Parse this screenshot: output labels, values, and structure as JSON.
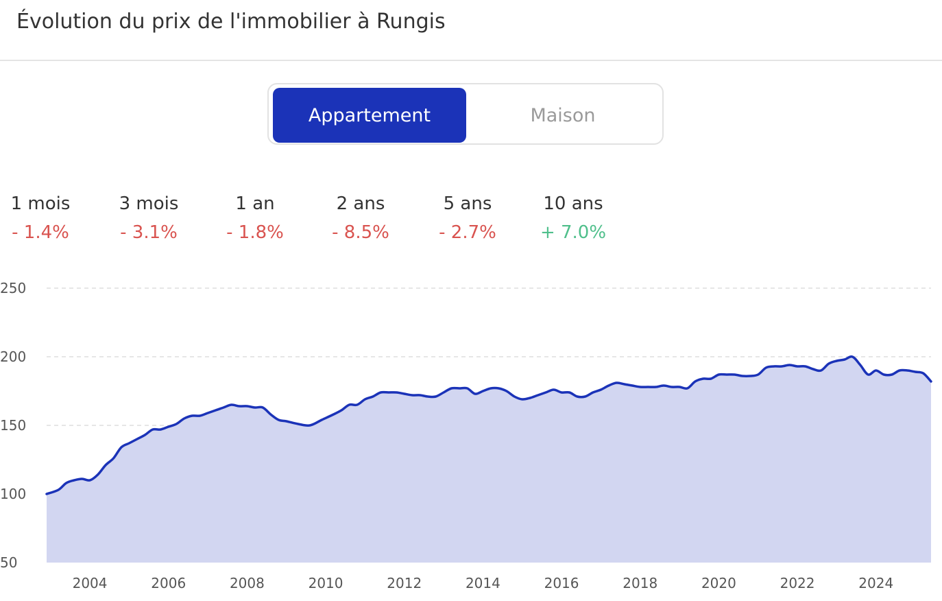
{
  "title": "Évolution du prix de l'immobilier à Rungis",
  "toggle": {
    "options": [
      "Appartement",
      "Maison"
    ],
    "selected": "Appartement",
    "active_color": "#1b33b8"
  },
  "stats": [
    {
      "label": "1 mois",
      "value": "- 1.4%",
      "trend": "down"
    },
    {
      "label": "3 mois",
      "value": "- 3.1%",
      "trend": "down"
    },
    {
      "label": "1 an",
      "value": "- 1.8%",
      "trend": "down"
    },
    {
      "label": "2 ans",
      "value": "- 8.5%",
      "trend": "down"
    },
    {
      "label": "5 ans",
      "value": "- 2.7%",
      "trend": "down"
    },
    {
      "label": "10 ans",
      "value": "+ 7.0%",
      "trend": "up"
    }
  ],
  "colors": {
    "negative": "#d9534f",
    "positive": "#4fbf8b",
    "line": "#1b33b8",
    "fill": "#d2d6f1"
  },
  "chart_data": {
    "type": "area",
    "title": "",
    "xlabel": "",
    "ylabel": "",
    "ylim": [
      50,
      250
    ],
    "xlim": [
      2002.9,
      2025.4
    ],
    "yticks": [
      250,
      200,
      150,
      100,
      50
    ],
    "xticks": [
      2004,
      2006,
      2008,
      2010,
      2012,
      2014,
      2016,
      2018,
      2020,
      2022,
      2024
    ],
    "grid": true,
    "legend": "none",
    "series": [
      {
        "x": [
          2002.9,
          2003.2,
          2003.4,
          2003.6,
          2003.8,
          2004.0,
          2004.2,
          2004.4,
          2004.6,
          2004.8,
          2005.0,
          2005.2,
          2005.4,
          2005.6,
          2005.8,
          2006.0,
          2006.2,
          2006.4,
          2006.6,
          2006.8,
          2007.0,
          2007.2,
          2007.4,
          2007.6,
          2007.8,
          2008.0,
          2008.2,
          2008.4,
          2008.6,
          2008.8,
          2009.0,
          2009.3,
          2009.6,
          2009.9,
          2010.2,
          2010.4,
          2010.6,
          2010.8,
          2011.0,
          2011.2,
          2011.4,
          2011.6,
          2011.8,
          2012.0,
          2012.2,
          2012.4,
          2012.6,
          2012.8,
          2013.0,
          2013.2,
          2013.4,
          2013.6,
          2013.8,
          2014.0,
          2014.2,
          2014.4,
          2014.6,
          2014.8,
          2015.0,
          2015.2,
          2015.4,
          2015.6,
          2015.8,
          2016.0,
          2016.2,
          2016.4,
          2016.6,
          2016.8,
          2017.0,
          2017.2,
          2017.4,
          2017.6,
          2017.8,
          2018.0,
          2018.2,
          2018.4,
          2018.6,
          2018.8,
          2019.0,
          2019.2,
          2019.4,
          2019.6,
          2019.8,
          2020.0,
          2020.2,
          2020.4,
          2020.6,
          2020.8,
          2021.0,
          2021.2,
          2021.4,
          2021.6,
          2021.8,
          2022.0,
          2022.2,
          2022.4,
          2022.6,
          2022.8,
          2023.0,
          2023.2,
          2023.4,
          2023.6,
          2023.8,
          2024.0,
          2024.2,
          2024.4,
          2024.6,
          2024.8,
          2025.0,
          2025.2,
          2025.4
        ],
        "values": [
          100,
          103,
          108,
          110,
          111,
          110,
          114,
          121,
          126,
          134,
          137,
          140,
          143,
          147,
          147,
          149,
          151,
          155,
          157,
          157,
          159,
          161,
          163,
          165,
          164,
          164,
          163,
          163,
          158,
          154,
          153,
          151,
          150,
          154,
          158,
          161,
          165,
          165,
          169,
          171,
          174,
          174,
          174,
          173,
          172,
          172,
          171,
          171,
          174,
          177,
          177,
          177,
          173,
          175,
          177,
          177,
          175,
          171,
          169,
          170,
          172,
          174,
          176,
          174,
          174,
          171,
          171,
          174,
          176,
          179,
          181,
          180,
          179,
          178,
          178,
          178,
          179,
          178,
          178,
          177,
          182,
          184,
          184,
          187,
          187,
          187,
          186,
          186,
          187,
          192,
          193,
          193,
          194,
          193,
          193,
          191,
          190,
          195,
          197,
          198,
          200,
          194,
          187,
          190,
          187,
          187,
          190,
          190,
          189,
          188,
          182
        ]
      }
    ]
  }
}
